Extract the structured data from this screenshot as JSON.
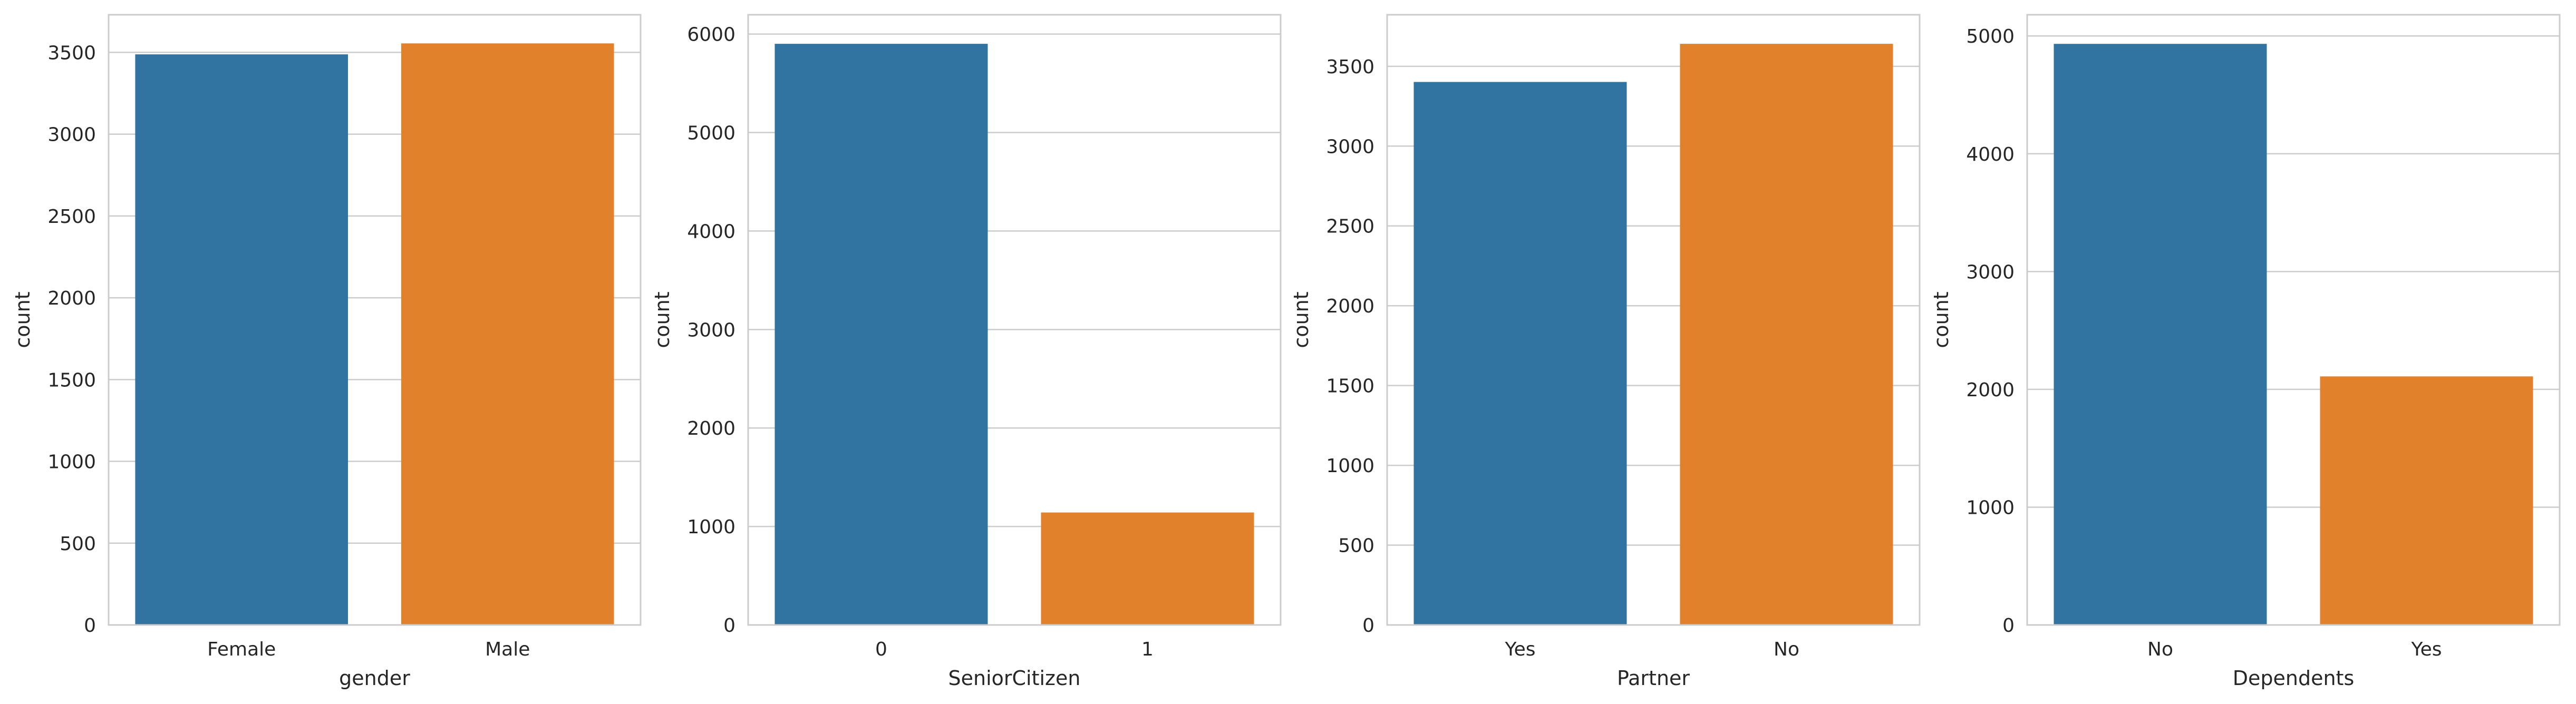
{
  "style": {
    "bar_colors": [
      "#3274a1",
      "#e1812c"
    ],
    "grid_color": "#cccccc",
    "frame_color": "#cccccc",
    "background": "#ffffff"
  },
  "chart_data": [
    {
      "type": "bar",
      "categories": [
        "Female",
        "Male"
      ],
      "values": [
        3488,
        3555
      ],
      "xlabel": "gender",
      "ylabel": "count",
      "ylim": [
        0,
        3730
      ],
      "yticks": [
        0,
        500,
        1000,
        1500,
        2000,
        2500,
        3000,
        3500
      ],
      "ytick_labels": [
        "0",
        "500",
        "1000",
        "1500",
        "2000",
        "2500",
        "3000",
        "3500"
      ],
      "grid": true
    },
    {
      "type": "bar",
      "categories": [
        "0",
        "1"
      ],
      "values": [
        5901,
        1142
      ],
      "xlabel": "SeniorCitizen",
      "ylabel": "count",
      "ylim": [
        0,
        6196
      ],
      "yticks": [
        0,
        1000,
        2000,
        3000,
        4000,
        5000,
        6000
      ],
      "ytick_labels": [
        "0",
        "1000",
        "2000",
        "3000",
        "4000",
        "5000",
        "6000"
      ],
      "grid": true
    },
    {
      "type": "bar",
      "categories": [
        "Yes",
        "No"
      ],
      "values": [
        3402,
        3641
      ],
      "xlabel": "Partner",
      "ylabel": "count",
      "ylim": [
        0,
        3823
      ],
      "yticks": [
        0,
        500,
        1000,
        1500,
        2000,
        2500,
        3000,
        3500
      ],
      "ytick_labels": [
        "0",
        "500",
        "1000",
        "1500",
        "2000",
        "2500",
        "3000",
        "3500"
      ],
      "grid": true
    },
    {
      "type": "bar",
      "categories": [
        "No",
        "Yes"
      ],
      "values": [
        4933,
        2110
      ],
      "xlabel": "Dependents",
      "ylabel": "count",
      "ylim": [
        0,
        5180
      ],
      "yticks": [
        0,
        1000,
        2000,
        3000,
        4000,
        5000
      ],
      "ytick_labels": [
        "0",
        "1000",
        "2000",
        "3000",
        "4000",
        "5000"
      ],
      "grid": true
    }
  ]
}
